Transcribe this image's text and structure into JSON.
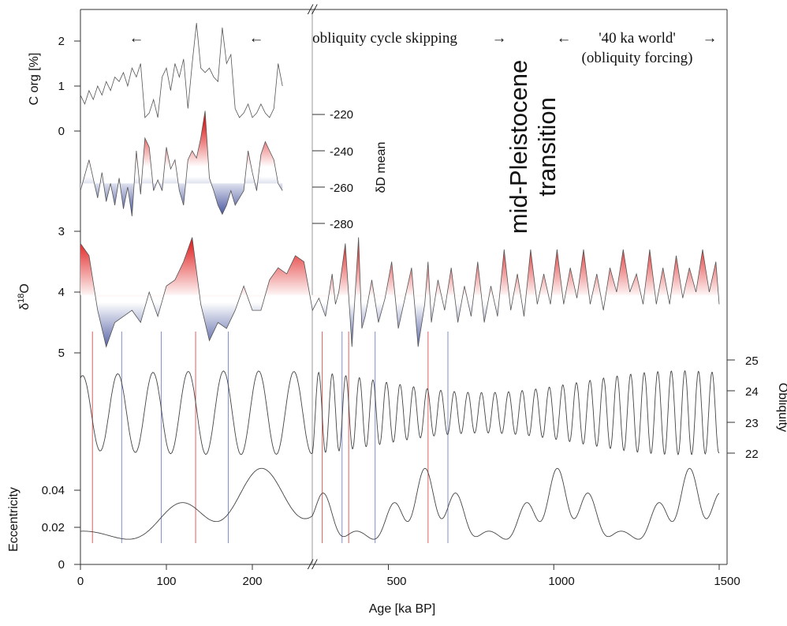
{
  "chart_data": {
    "type": "line",
    "xlabel": "Age [ka BP]",
    "x_axis_break": "//",
    "x_ticks_left": [
      "0",
      "100",
      "200"
    ],
    "x_ticks_right": [
      "500",
      "1000",
      "1500"
    ],
    "xlim_left": [
      0,
      270
    ],
    "xlim_right": [
      270,
      1500
    ],
    "colors": {
      "warm": "#e02020",
      "cold": "#2a3a8f",
      "marker_red": "#e06060",
      "marker_blue": "#8090d0",
      "line": "#444444"
    },
    "panels": [
      {
        "name": "C org",
        "ylabel": "C org [%]",
        "yticks": [
          "0",
          "1",
          "2"
        ],
        "ylim": [
          0,
          2.5
        ],
        "x": [
          0,
          5,
          10,
          15,
          20,
          25,
          30,
          35,
          40,
          45,
          50,
          55,
          60,
          65,
          70,
          75,
          80,
          85,
          90,
          95,
          100,
          105,
          110,
          115,
          120,
          125,
          130,
          135,
          140,
          145,
          150,
          155,
          160,
          165,
          170,
          175,
          180,
          185,
          190,
          195,
          200,
          205,
          210,
          215,
          220,
          225,
          230,
          235
        ],
        "y": [
          0.8,
          0.6,
          0.9,
          0.7,
          1.0,
          0.8,
          1.1,
          0.9,
          1.2,
          1.1,
          1.3,
          1.0,
          1.4,
          1.2,
          1.5,
          0.3,
          0.4,
          0.7,
          0.3,
          1.2,
          1.4,
          0.9,
          1.5,
          1.2,
          1.6,
          0.5,
          1.5,
          2.4,
          1.4,
          1.3,
          1.4,
          1.2,
          1.1,
          2.3,
          1.5,
          1.7,
          0.5,
          0.3,
          0.4,
          0.6,
          0.3,
          0.4,
          0.6,
          0.4,
          0.3,
          0.5,
          1.5,
          1.0
        ]
      },
      {
        "name": "δD mean",
        "ylabel": "δD mean",
        "yticks": [
          "-220",
          "-240",
          "-260",
          "-280"
        ],
        "ylim": [
          -285,
          -215
        ],
        "threshold": -258,
        "x": [
          0,
          10,
          20,
          25,
          30,
          35,
          40,
          45,
          50,
          55,
          60,
          65,
          70,
          75,
          80,
          85,
          90,
          95,
          100,
          105,
          110,
          115,
          120,
          125,
          130,
          135,
          140,
          145,
          150,
          155,
          160,
          165,
          170,
          175,
          180,
          185,
          190,
          195,
          200,
          205,
          210,
          215,
          220,
          225,
          230,
          235
        ],
        "y": [
          -262,
          -245,
          -266,
          -252,
          -268,
          -258,
          -270,
          -255,
          -272,
          -260,
          -276,
          -240,
          -264,
          -233,
          -238,
          -262,
          -256,
          -262,
          -238,
          -250,
          -245,
          -262,
          -270,
          -245,
          -240,
          -244,
          -233,
          -218,
          -255,
          -262,
          -270,
          -275,
          -270,
          -262,
          -270,
          -266,
          -262,
          -240,
          -252,
          -262,
          -242,
          -235,
          -240,
          -245,
          -258,
          -262
        ]
      },
      {
        "name": "δ18O",
        "ylabel": "δ18O",
        "yticks": [
          "3",
          "4",
          "5"
        ],
        "ylim": [
          5.3,
          2.8
        ],
        "threshold": 4.05,
        "x": [
          0,
          10,
          20,
          30,
          40,
          50,
          60,
          70,
          80,
          90,
          100,
          110,
          120,
          130,
          140,
          150,
          160,
          170,
          180,
          190,
          200,
          210,
          220,
          230,
          240,
          250,
          260,
          270,
          290,
          310,
          330,
          340,
          350,
          370,
          390,
          410,
          420,
          430,
          450,
          470,
          490,
          510,
          530,
          550,
          570,
          590,
          610,
          620,
          630,
          650,
          670,
          690,
          710,
          730,
          750,
          770,
          790,
          810,
          830,
          850,
          870,
          890,
          910,
          930,
          950,
          970,
          990,
          1010,
          1030,
          1050,
          1070,
          1090,
          1110,
          1130,
          1150,
          1170,
          1190,
          1210,
          1230,
          1250,
          1270,
          1290,
          1310,
          1330,
          1350,
          1370,
          1390,
          1410,
          1430,
          1450,
          1470,
          1490,
          1500
        ],
        "y": [
          3.2,
          3.4,
          4.3,
          4.9,
          4.5,
          4.4,
          4.3,
          4.5,
          4.0,
          4.4,
          3.9,
          3.8,
          3.5,
          3.1,
          4.2,
          4.8,
          4.5,
          4.6,
          4.3,
          3.9,
          4.3,
          4.3,
          3.8,
          3.6,
          3.7,
          3.4,
          3.5,
          4.3,
          4.1,
          4.4,
          3.7,
          4.2,
          4.0,
          3.2,
          4.9,
          3.1,
          4.6,
          4.4,
          3.8,
          4.5,
          4.1,
          3.5,
          4.6,
          4.1,
          3.6,
          4.9,
          4.2,
          3.5,
          4.5,
          3.8,
          4.3,
          3.6,
          4.5,
          3.9,
          4.4,
          3.5,
          4.5,
          3.9,
          4.4,
          3.3,
          4.3,
          3.7,
          4.4,
          3.3,
          4.2,
          3.7,
          4.2,
          3.3,
          4.2,
          3.6,
          4.1,
          3.3,
          4.2,
          3.7,
          4.3,
          3.6,
          4.0,
          3.3,
          4.0,
          3.7,
          4.2,
          3.3,
          4.2,
          3.6,
          4.2,
          3.4,
          4.1,
          3.6,
          4.0,
          3.3,
          4.0,
          3.5,
          4.2
        ]
      },
      {
        "name": "Obliquity",
        "ylabel": "Obliquity",
        "yticks": [
          "22",
          "23",
          "24",
          "25"
        ],
        "ylim": [
          21.5,
          25.5
        ],
        "mean": 23.3,
        "period_ka": 41
      },
      {
        "name": "Eccentricity",
        "ylabel": "Eccentricity",
        "yticks": [
          "0",
          "0.02",
          "0.04"
        ],
        "ylim": [
          0,
          0.06
        ],
        "period_ka": 100
      }
    ],
    "marker_lines": [
      {
        "age": 14,
        "color": "red"
      },
      {
        "age": 48,
        "color": "blue"
      },
      {
        "age": 94,
        "color": "blue"
      },
      {
        "age": 134,
        "color": "red"
      },
      {
        "age": 172,
        "color": "blue"
      },
      {
        "age": 300,
        "color": "red"
      },
      {
        "age": 360,
        "color": "blue"
      },
      {
        "age": 380,
        "color": "red"
      },
      {
        "age": 460,
        "color": "blue"
      },
      {
        "age": 620,
        "color": "red"
      },
      {
        "age": 680,
        "color": "blue"
      }
    ],
    "annotations": {
      "left_arrow_1": "←",
      "left_arrow_2": "←",
      "center_text": "obliquity cycle skipping",
      "right_arrow_1": "→",
      "left_arrow_3": "←",
      "world_line1": "'40 ka world'",
      "world_line2": "(obliquity forcing)",
      "right_arrow_2": "→",
      "mpt_line1": "mid-Pleistocene",
      "mpt_line2": "transition"
    }
  }
}
